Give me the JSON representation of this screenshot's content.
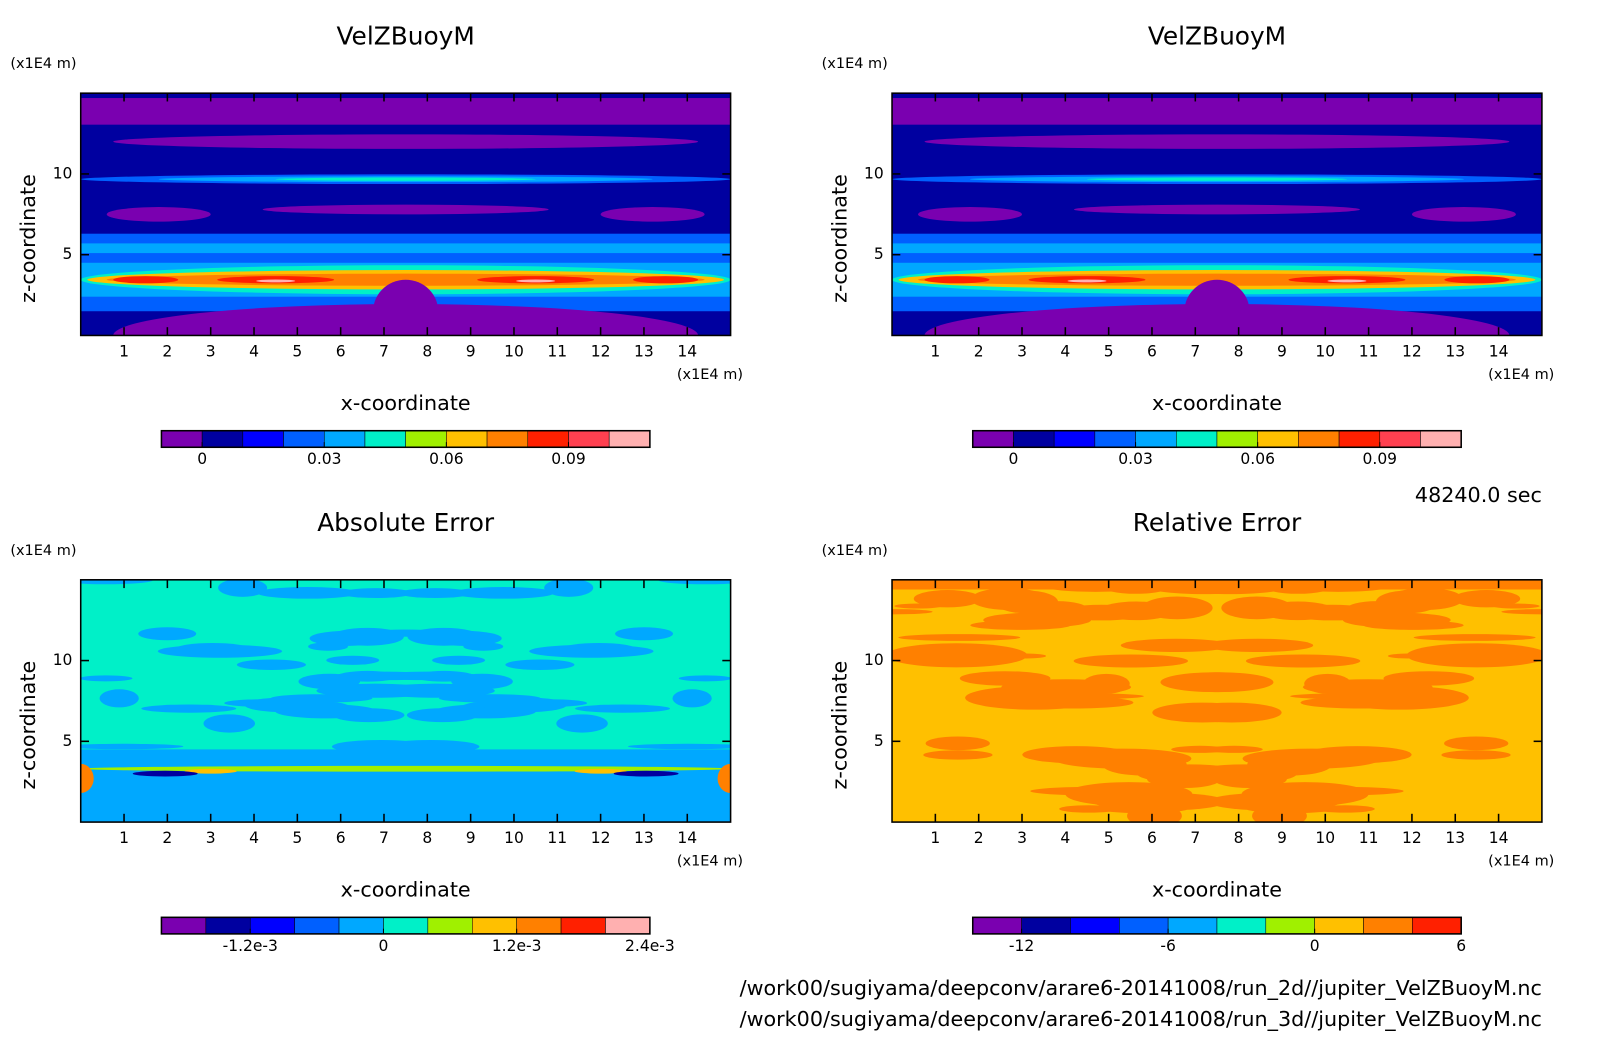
{
  "chart_data": [
    {
      "type": "contour",
      "field": "buoy",
      "title": "VelZBuoyM",
      "xlabel": "x-coordinate",
      "ylabel": "z-coordinate",
      "x_unit": "(x1E4 m)",
      "y_unit": "(x1E4 m)",
      "xlim": [
        0,
        15
      ],
      "ylim": [
        0,
        15
      ],
      "xticks": [
        1,
        2,
        3,
        4,
        5,
        6,
        7,
        8,
        9,
        10,
        11,
        12,
        13,
        14
      ],
      "yticks": [
        5,
        10
      ],
      "levels": [
        -0.01,
        0,
        0.01,
        0.02,
        0.03,
        0.04,
        0.05,
        0.06,
        0.07,
        0.08,
        0.09,
        0.1,
        0.11
      ],
      "colors": [
        "#7a00b0",
        "#0000a0",
        "#0000ff",
        "#0060ff",
        "#00a8ff",
        "#00f0c8",
        "#a0f000",
        "#ffc000",
        "#ff8000",
        "#ff2000",
        "#ff4050",
        "#ffb0b0"
      ],
      "cticks": [
        0,
        0.03,
        0.06,
        0.09
      ]
    },
    {
      "type": "contour",
      "field": "buoy",
      "title": "VelZBuoyM",
      "xlabel": "x-coordinate",
      "ylabel": "z-coordinate",
      "x_unit": "(x1E4 m)",
      "y_unit": "(x1E4 m)",
      "xlim": [
        0,
        15
      ],
      "ylim": [
        0,
        15
      ],
      "xticks": [
        1,
        2,
        3,
        4,
        5,
        6,
        7,
        8,
        9,
        10,
        11,
        12,
        13,
        14
      ],
      "yticks": [
        5,
        10
      ],
      "levels": [
        -0.01,
        0,
        0.01,
        0.02,
        0.03,
        0.04,
        0.05,
        0.06,
        0.07,
        0.08,
        0.09,
        0.1,
        0.11
      ],
      "colors": [
        "#7a00b0",
        "#0000a0",
        "#0000ff",
        "#0060ff",
        "#00a8ff",
        "#00f0c8",
        "#a0f000",
        "#ffc000",
        "#ff8000",
        "#ff2000",
        "#ff4050",
        "#ffb0b0"
      ],
      "cticks": [
        0,
        0.03,
        0.06,
        0.09
      ]
    },
    {
      "type": "contour",
      "field": "abs",
      "title": "Absolute Error",
      "xlabel": "x-coordinate",
      "ylabel": "z-coordinate",
      "x_unit": "(x1E4 m)",
      "y_unit": "(x1E4 m)",
      "xlim": [
        0,
        15
      ],
      "ylim": [
        0,
        15
      ],
      "xticks": [
        1,
        2,
        3,
        4,
        5,
        6,
        7,
        8,
        9,
        10,
        11,
        12,
        13,
        14
      ],
      "yticks": [
        5,
        10
      ],
      "levels": [
        -0.002,
        -0.0016,
        -0.0012,
        -0.0008,
        -0.0004,
        0,
        0.0004,
        0.0008,
        0.0012,
        0.0016,
        0.002,
        0.0024
      ],
      "colors": [
        "#7a00b0",
        "#0000a0",
        "#0000ff",
        "#0060ff",
        "#00a8ff",
        "#00f0c8",
        "#a0f000",
        "#ffc000",
        "#ff8000",
        "#ff2000",
        "#ffb0b0"
      ],
      "cticks": [
        {
          "value": -0.0012,
          "label": "-1.2e-3"
        },
        0,
        {
          "value": 0.0012,
          "label": "1.2e-3"
        },
        {
          "value": 0.0024,
          "label": "2.4e-3"
        }
      ]
    },
    {
      "type": "contour",
      "field": "rel",
      "title": "Relative Error",
      "xlabel": "x-coordinate",
      "ylabel": "z-coordinate",
      "x_unit": "(x1E4 m)",
      "y_unit": "(x1E4 m)",
      "xlim": [
        0,
        15
      ],
      "ylim": [
        0,
        15
      ],
      "xticks": [
        1,
        2,
        3,
        4,
        5,
        6,
        7,
        8,
        9,
        10,
        11,
        12,
        13,
        14
      ],
      "yticks": [
        5,
        10
      ],
      "levels": [
        -14,
        -12,
        -10,
        -8,
        -6,
        -4,
        -2,
        0,
        2,
        4,
        6
      ],
      "colors": [
        "#7a00b0",
        "#0000a0",
        "#0000ff",
        "#0060ff",
        "#00a8ff",
        "#00f0c8",
        "#a0f000",
        "#ffc000",
        "#ff8000",
        "#ff2000"
      ],
      "cticks": [
        -12,
        -6,
        0,
        6
      ]
    }
  ],
  "time": "48240.0 sec",
  "files": [
    "/work00/sugiyama/deepconv/arare6-20141008/run_2d//jupiter_VelZBuoyM.nc",
    "/work00/sugiyama/deepconv/arare6-20141008/run_3d//jupiter_VelZBuoyM.nc"
  ]
}
